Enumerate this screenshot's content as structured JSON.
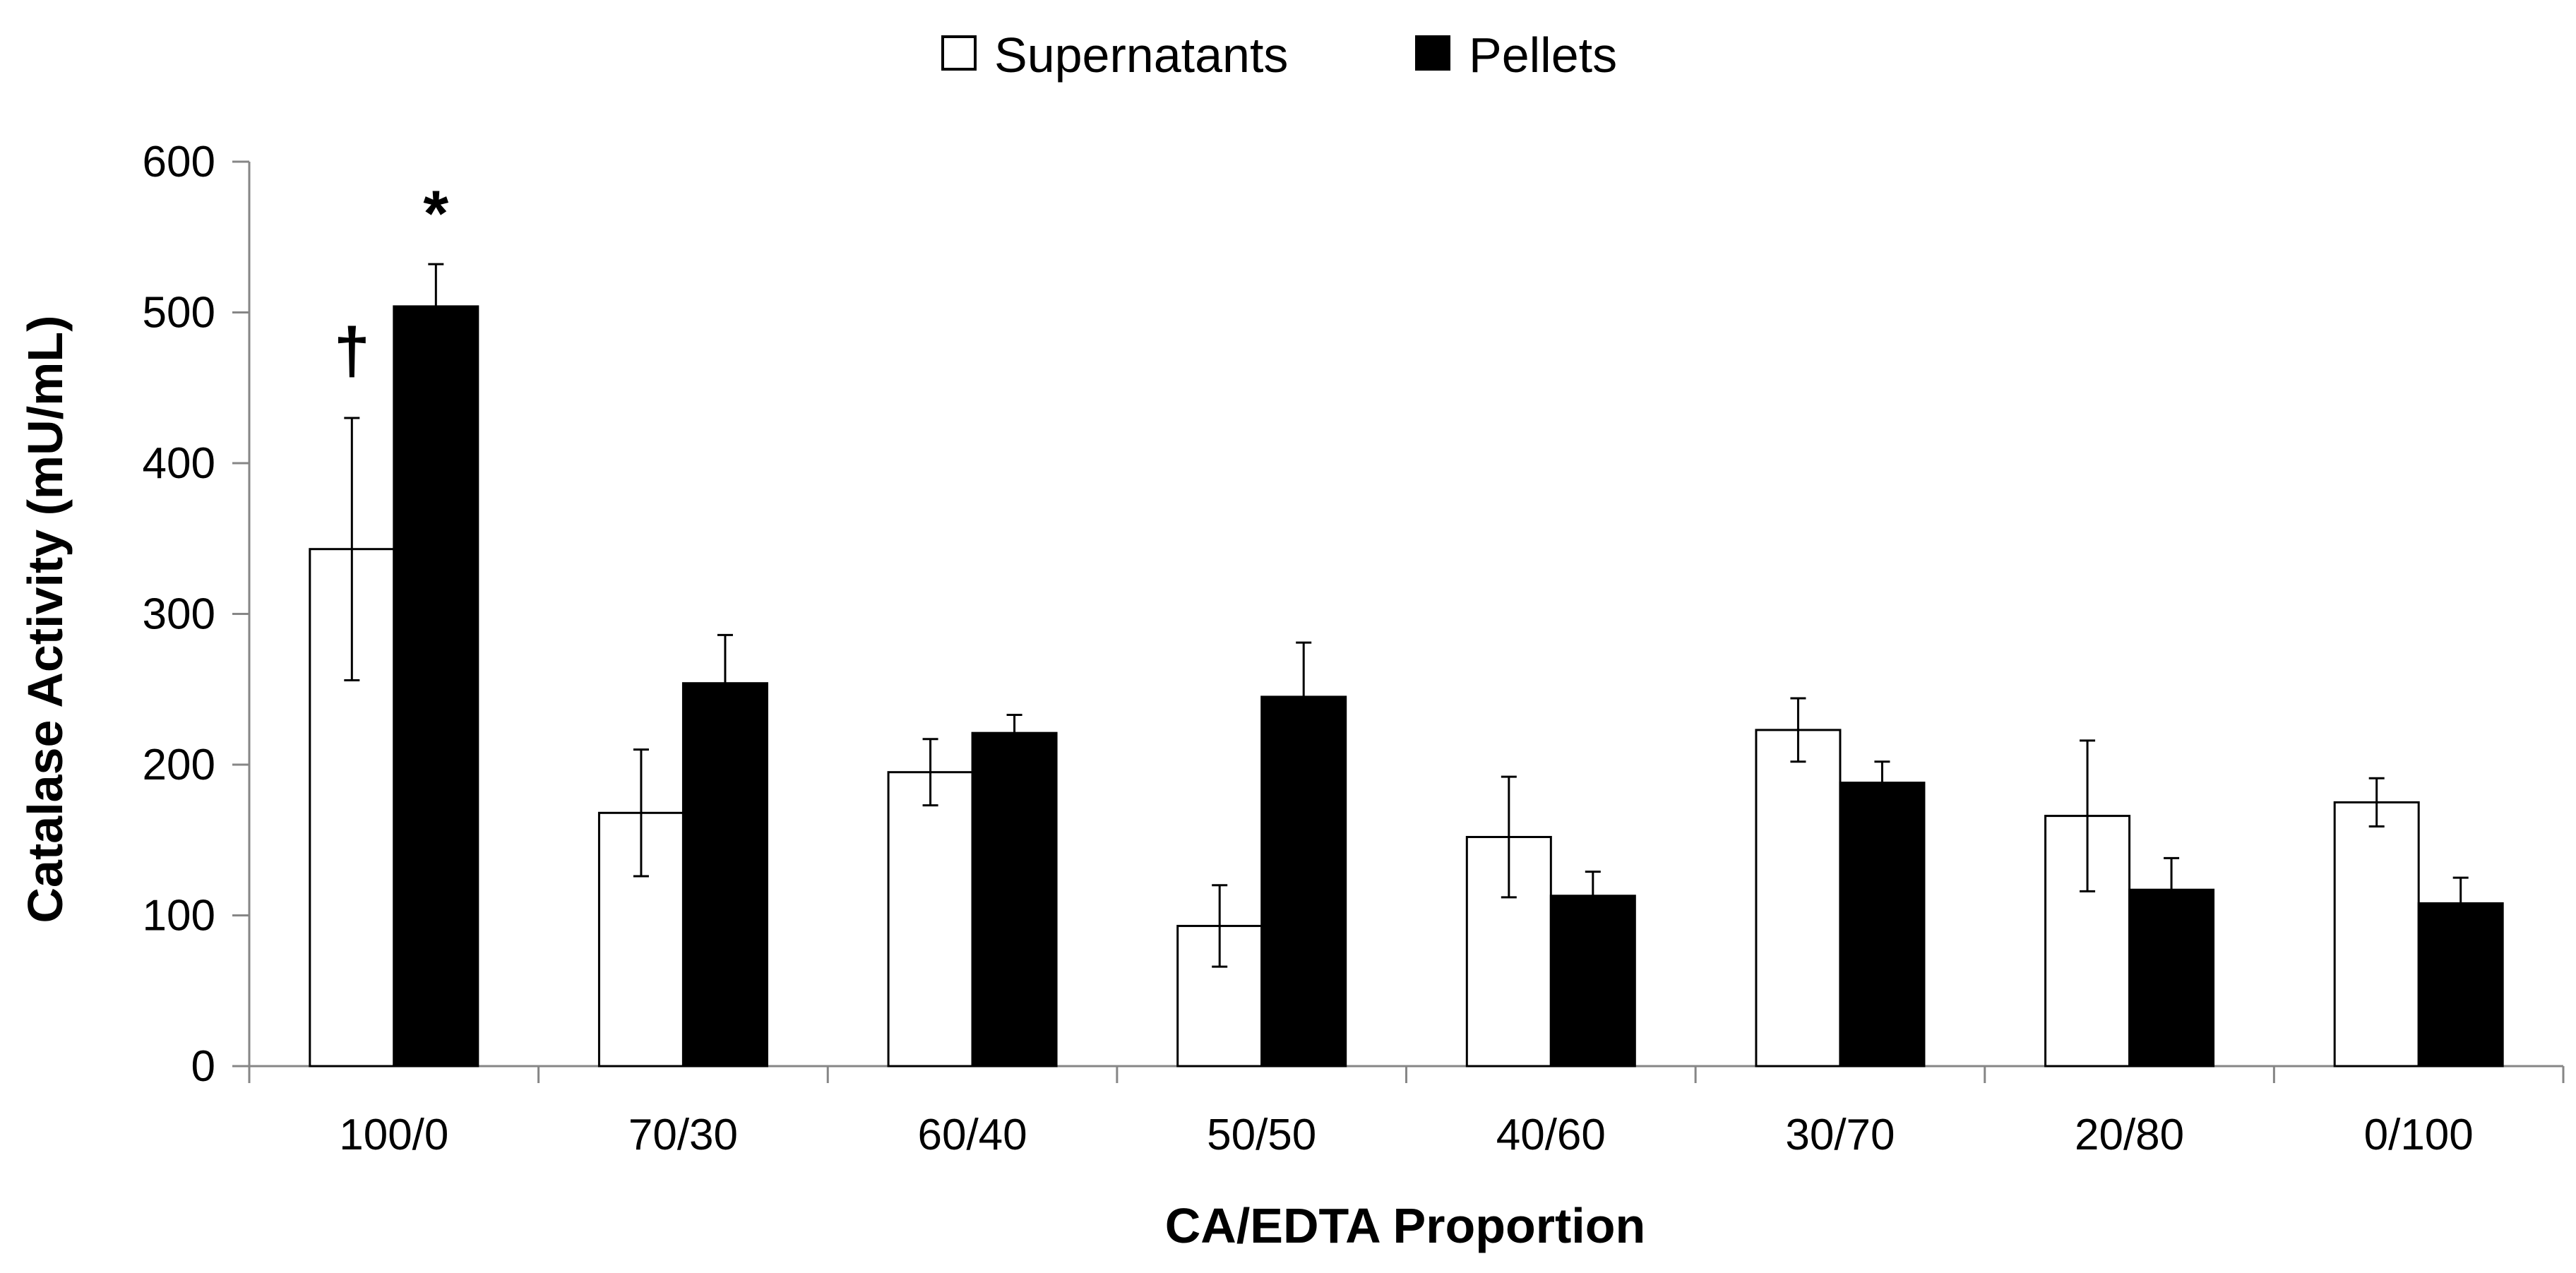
{
  "chart_data": {
    "type": "bar",
    "title": "",
    "xlabel": "CA/EDTA Proportion",
    "ylabel": "Catalase Activity (mU/mL)",
    "ylim": [
      0,
      600
    ],
    "yticks": [
      0,
      100,
      200,
      300,
      400,
      500,
      600
    ],
    "grid": false,
    "legend_position": "top-center",
    "categories": [
      "100/0",
      "70/30",
      "60/40",
      "50/50",
      "40/60",
      "30/70",
      "20/80",
      "0/100"
    ],
    "series": [
      {
        "name": "Supernatants",
        "fill": "#ffffff",
        "stroke": "#000000",
        "values": [
          343,
          168,
          195,
          93,
          152,
          223,
          166,
          175
        ],
        "errors": [
          87,
          42,
          22,
          27,
          40,
          21,
          50,
          16
        ]
      },
      {
        "name": "Pellets",
        "fill": "#000000",
        "stroke": "#000000",
        "values": [
          504,
          254,
          221,
          245,
          113,
          188,
          117,
          108
        ],
        "errors": [
          28,
          32,
          12,
          36,
          16,
          14,
          21,
          17
        ]
      }
    ],
    "annotations": [
      {
        "text": "†",
        "category": "100/0",
        "series": "Supernatants"
      },
      {
        "text": "*",
        "category": "100/0",
        "series": "Pellets"
      }
    ]
  }
}
